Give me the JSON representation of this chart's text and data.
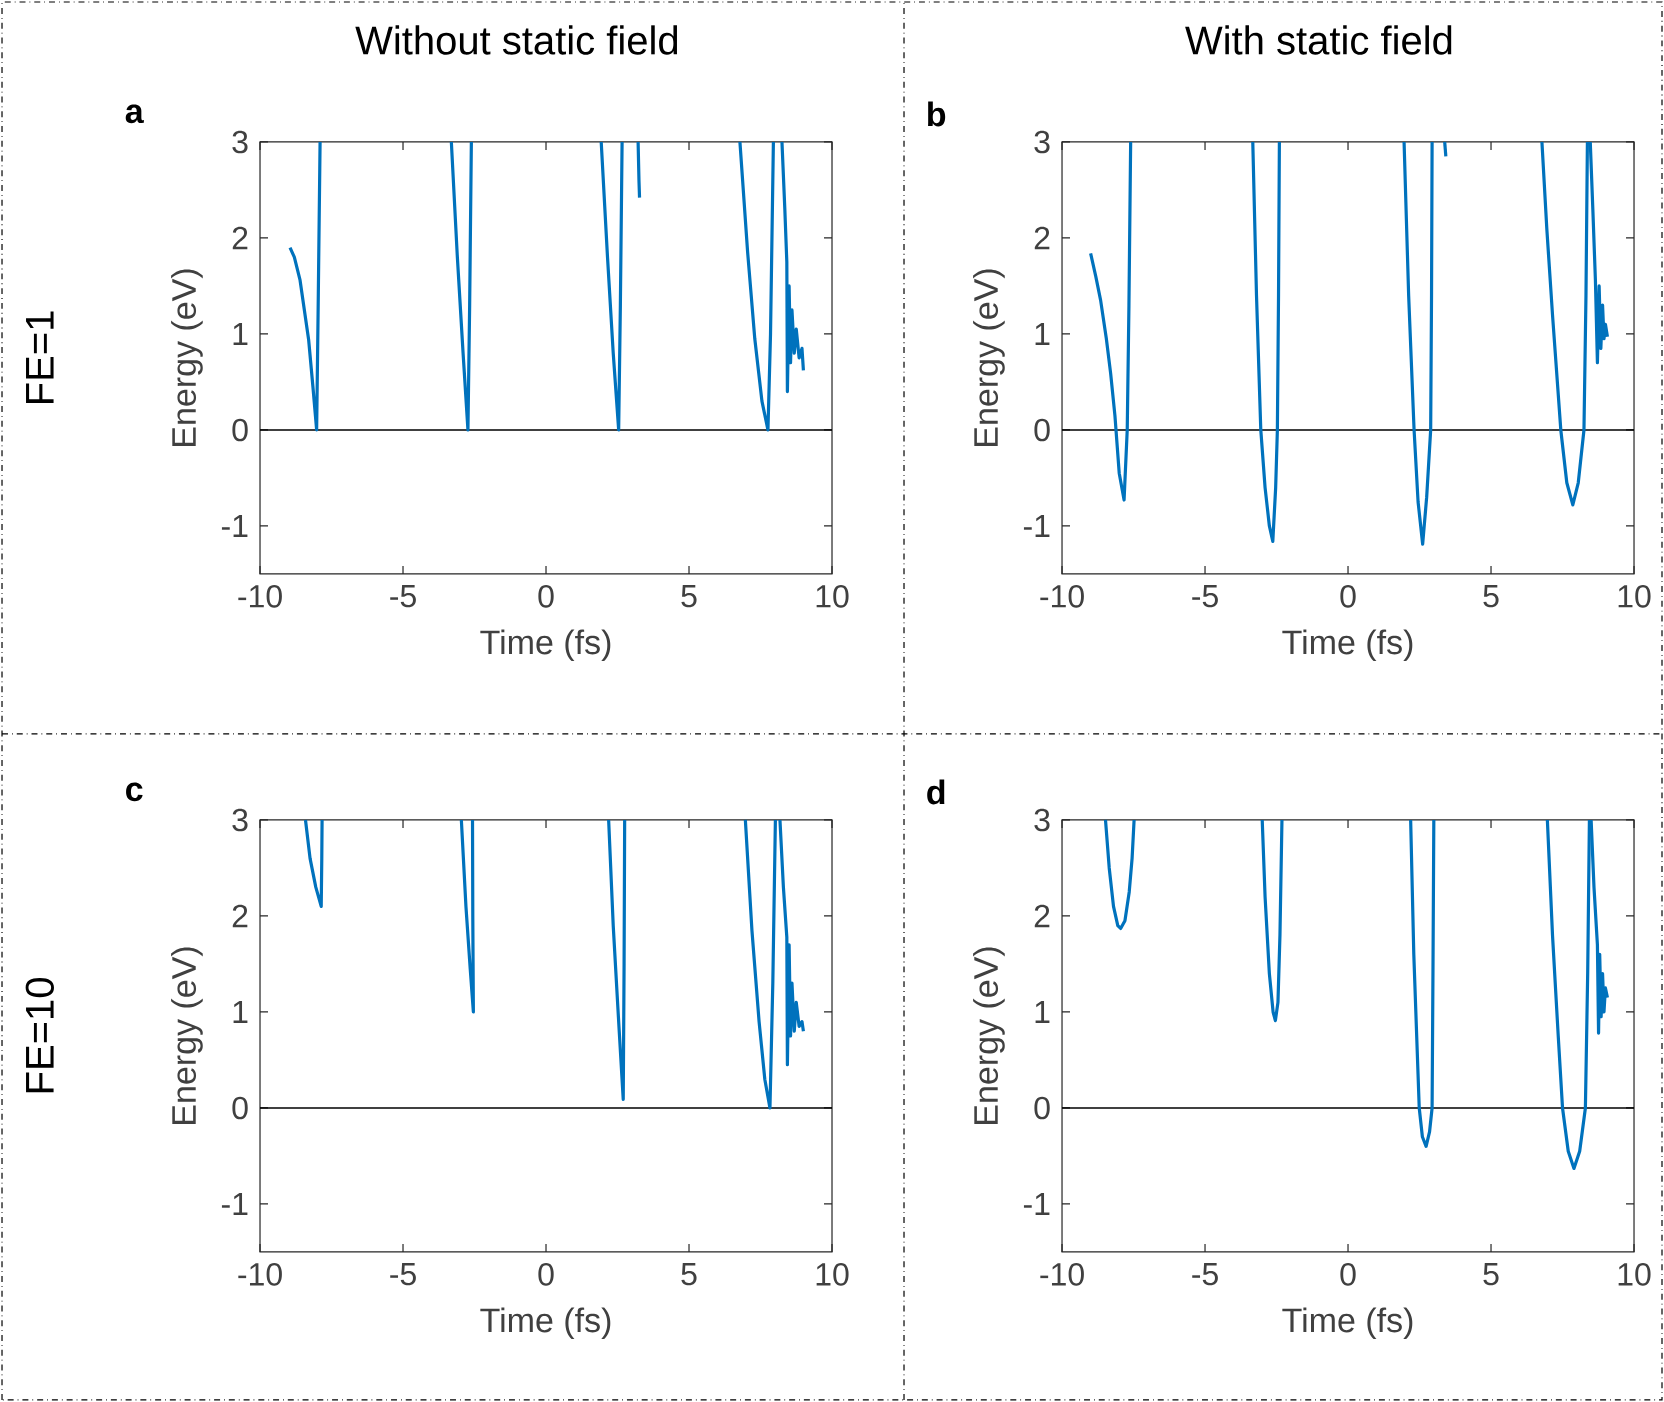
{
  "chart_data": [
    {
      "type": "line",
      "title": "a",
      "xlabel": "Time (fs)",
      "ylabel": "Energy (eV)",
      "annotations": [
        "Without static field",
        "FE=1"
      ],
      "xlim": [
        -10,
        10
      ],
      "ylim": [
        -1.5,
        3
      ],
      "xticks": [
        -10,
        -5,
        0,
        5,
        10
      ],
      "yticks": [
        -1,
        0,
        1,
        2,
        3
      ],
      "ref_lines": [
        {
          "axis": "y",
          "value": 0,
          "color": "#000000"
        }
      ],
      "series": [
        {
          "color": "#0072bd",
          "x": [
            -8.95,
            -8.8,
            -8.6,
            -8.45,
            -8.3,
            -8.15,
            -8.02,
            -7.97,
            -7.9
          ],
          "values": [
            1.9,
            1.8,
            1.56,
            1.25,
            0.94,
            0.45,
            0.0,
            1.2,
            3
          ]
        },
        {
          "color": "#0072bd",
          "x": [
            -3.31,
            -3.1,
            -2.9,
            -2.73,
            -2.67,
            -2.61
          ],
          "values": [
            3,
            1.8,
            0.8,
            0.0,
            1.3,
            3
          ]
        },
        {
          "color": "#0072bd",
          "x": [
            1.93,
            2.15,
            2.35,
            2.54,
            2.6,
            2.66
          ],
          "values": [
            3,
            1.8,
            0.8,
            0.0,
            1.3,
            3
          ]
        },
        {
          "color": "#0072bd",
          "x": [
            3.22,
            3.25,
            3.27
          ],
          "values": [
            3,
            2.6,
            2.42
          ]
        },
        {
          "color": "#0072bd",
          "x": [
            6.78,
            7.05,
            7.3,
            7.55,
            7.76,
            7.85,
            7.95
          ],
          "values": [
            3,
            1.85,
            0.95,
            0.3,
            0.0,
            1.0,
            3
          ]
        },
        {
          "color": "#0072bd",
          "x": [
            8.25,
            8.35,
            8.42,
            8.44,
            8.5,
            8.55,
            8.6,
            8.68,
            8.75,
            8.85,
            8.95,
            9.0
          ],
          "values": [
            3,
            2.3,
            1.75,
            0.4,
            1.5,
            0.7,
            1.25,
            0.8,
            1.05,
            0.75,
            0.85,
            0.62
          ]
        }
      ]
    },
    {
      "type": "line",
      "title": "b",
      "xlabel": "Time (fs)",
      "ylabel": "Energy (eV)",
      "annotations": [
        "With static field"
      ],
      "xlim": [
        -10,
        10
      ],
      "ylim": [
        -1.5,
        3
      ],
      "xticks": [
        -10,
        -5,
        0,
        5,
        10
      ],
      "yticks": [
        -1,
        0,
        1,
        2,
        3
      ],
      "ref_lines": [
        {
          "axis": "y",
          "value": 0,
          "color": "#000000"
        }
      ],
      "series": [
        {
          "color": "#0072bd",
          "x": [
            -9.0,
            -8.82,
            -8.65,
            -8.45,
            -8.3,
            -8.15,
            -8.0,
            -7.83,
            -7.72,
            -7.66,
            -7.6
          ],
          "values": [
            1.84,
            1.6,
            1.35,
            0.95,
            0.59,
            0.15,
            -0.45,
            -0.73,
            0.0,
            1.3,
            3
          ]
        },
        {
          "color": "#0072bd",
          "x": [
            -3.33,
            -3.2,
            -3.05,
            -2.9,
            -2.75,
            -2.63,
            -2.53,
            -2.47,
            -2.43,
            -2.4
          ],
          "values": [
            3,
            1.4,
            0.0,
            -0.6,
            -1.0,
            -1.16,
            -0.6,
            0.0,
            1.4,
            3
          ]
        },
        {
          "color": "#0072bd",
          "x": [
            1.96,
            2.12,
            2.31,
            2.45,
            2.61,
            2.75,
            2.89,
            2.92,
            2.94
          ],
          "values": [
            3,
            1.4,
            0.0,
            -0.75,
            -1.19,
            -0.7,
            0.0,
            1.4,
            3
          ]
        },
        {
          "color": "#0072bd",
          "x": [
            3.38,
            3.42
          ],
          "values": [
            3,
            2.85
          ]
        },
        {
          "color": "#0072bd",
          "x": [
            6.78,
            6.95,
            7.15,
            7.44,
            7.65,
            7.86,
            8.05,
            8.25,
            8.32,
            8.37
          ],
          "values": [
            3,
            2.1,
            1.2,
            0.0,
            -0.55,
            -0.78,
            -0.55,
            0.0,
            1.4,
            3
          ]
        },
        {
          "color": "#0072bd",
          "x": [
            8.47,
            8.56,
            8.65,
            8.72,
            8.78,
            8.84,
            8.9,
            8.95,
            9.0,
            9.07
          ],
          "values": [
            3,
            2.3,
            1.56,
            0.7,
            1.5,
            0.85,
            1.3,
            0.95,
            1.1,
            0.97
          ]
        }
      ]
    },
    {
      "type": "line",
      "title": "c",
      "xlabel": "Time (fs)",
      "ylabel": "Energy (eV)",
      "annotations": [
        "FE=10"
      ],
      "xlim": [
        -10,
        10
      ],
      "ylim": [
        -1.5,
        3
      ],
      "xticks": [
        -10,
        -5,
        0,
        5,
        10
      ],
      "yticks": [
        -1,
        0,
        1,
        2,
        3
      ],
      "ref_lines": [
        {
          "axis": "y",
          "value": 0,
          "color": "#000000"
        }
      ],
      "series": [
        {
          "color": "#0072bd",
          "x": [
            -8.41,
            -8.25,
            -8.05,
            -7.86,
            -7.84,
            -7.83
          ],
          "values": [
            3,
            2.6,
            2.3,
            2.1,
            2.6,
            3
          ]
        },
        {
          "color": "#0072bd",
          "x": [
            -2.96,
            -2.8,
            -2.65,
            -2.54,
            -2.56,
            -2.57
          ],
          "values": [
            3,
            2.1,
            1.45,
            1.0,
            2.0,
            3
          ]
        },
        {
          "color": "#0072bd",
          "x": [
            2.19,
            2.35,
            2.55,
            2.7,
            2.73,
            2.75
          ],
          "values": [
            3,
            1.9,
            0.85,
            0.09,
            1.5,
            3
          ]
        },
        {
          "color": "#0072bd",
          "x": [
            6.97,
            7.2,
            7.45,
            7.65,
            7.83,
            7.93,
            8.02
          ],
          "values": [
            3,
            1.85,
            0.9,
            0.3,
            0.0,
            1.3,
            3
          ]
        },
        {
          "color": "#0072bd",
          "x": [
            8.18,
            8.3,
            8.42,
            8.44,
            8.5,
            8.55,
            8.6,
            8.68,
            8.75,
            8.85,
            8.95,
            9.0
          ],
          "values": [
            3,
            2.3,
            1.78,
            0.45,
            1.7,
            0.75,
            1.3,
            0.8,
            1.1,
            0.85,
            0.9,
            0.8
          ]
        }
      ]
    },
    {
      "type": "line",
      "title": "d",
      "xlabel": "Time (fs)",
      "ylabel": "Energy (eV)",
      "xlim": [
        -10,
        10
      ],
      "ylim": [
        -1.5,
        3
      ],
      "xticks": [
        -10,
        -5,
        0,
        5,
        10
      ],
      "yticks": [
        -1,
        0,
        1,
        2,
        3
      ],
      "ref_lines": [
        {
          "axis": "y",
          "value": 0,
          "color": "#000000"
        }
      ],
      "series": [
        {
          "color": "#0072bd",
          "x": [
            -8.48,
            -8.35,
            -8.2,
            -8.05,
            -7.95,
            -7.8,
            -7.65,
            -7.55,
            -7.48
          ],
          "values": [
            3,
            2.5,
            2.1,
            1.9,
            1.87,
            1.95,
            2.25,
            2.6,
            3
          ]
        },
        {
          "color": "#0072bd",
          "x": [
            -3.0,
            -2.9,
            -2.75,
            -2.62,
            -2.54,
            -2.45,
            -2.38,
            -2.31
          ],
          "values": [
            3,
            2.2,
            1.4,
            1.0,
            0.91,
            1.1,
            1.8,
            3
          ]
        },
        {
          "color": "#0072bd",
          "x": [
            2.19,
            2.3,
            2.49,
            2.6,
            2.73,
            2.85,
            2.94,
            2.97,
            3.0
          ],
          "values": [
            3,
            1.6,
            0.0,
            -0.3,
            -0.4,
            -0.25,
            0.0,
            1.4,
            3
          ]
        },
        {
          "color": "#0072bd",
          "x": [
            6.97,
            7.15,
            7.35,
            7.5,
            7.7,
            7.9,
            8.1,
            8.3,
            8.38,
            8.44
          ],
          "values": [
            3,
            1.8,
            0.75,
            0.0,
            -0.45,
            -0.63,
            -0.45,
            0.0,
            1.4,
            3
          ]
        },
        {
          "color": "#0072bd",
          "x": [
            8.5,
            8.6,
            8.72,
            8.76,
            8.8,
            8.85,
            8.9,
            8.95,
            9.0,
            9.07
          ],
          "values": [
            3,
            2.3,
            1.7,
            0.78,
            1.6,
            0.95,
            1.4,
            1.0,
            1.25,
            1.15
          ]
        }
      ]
    }
  ]
}
